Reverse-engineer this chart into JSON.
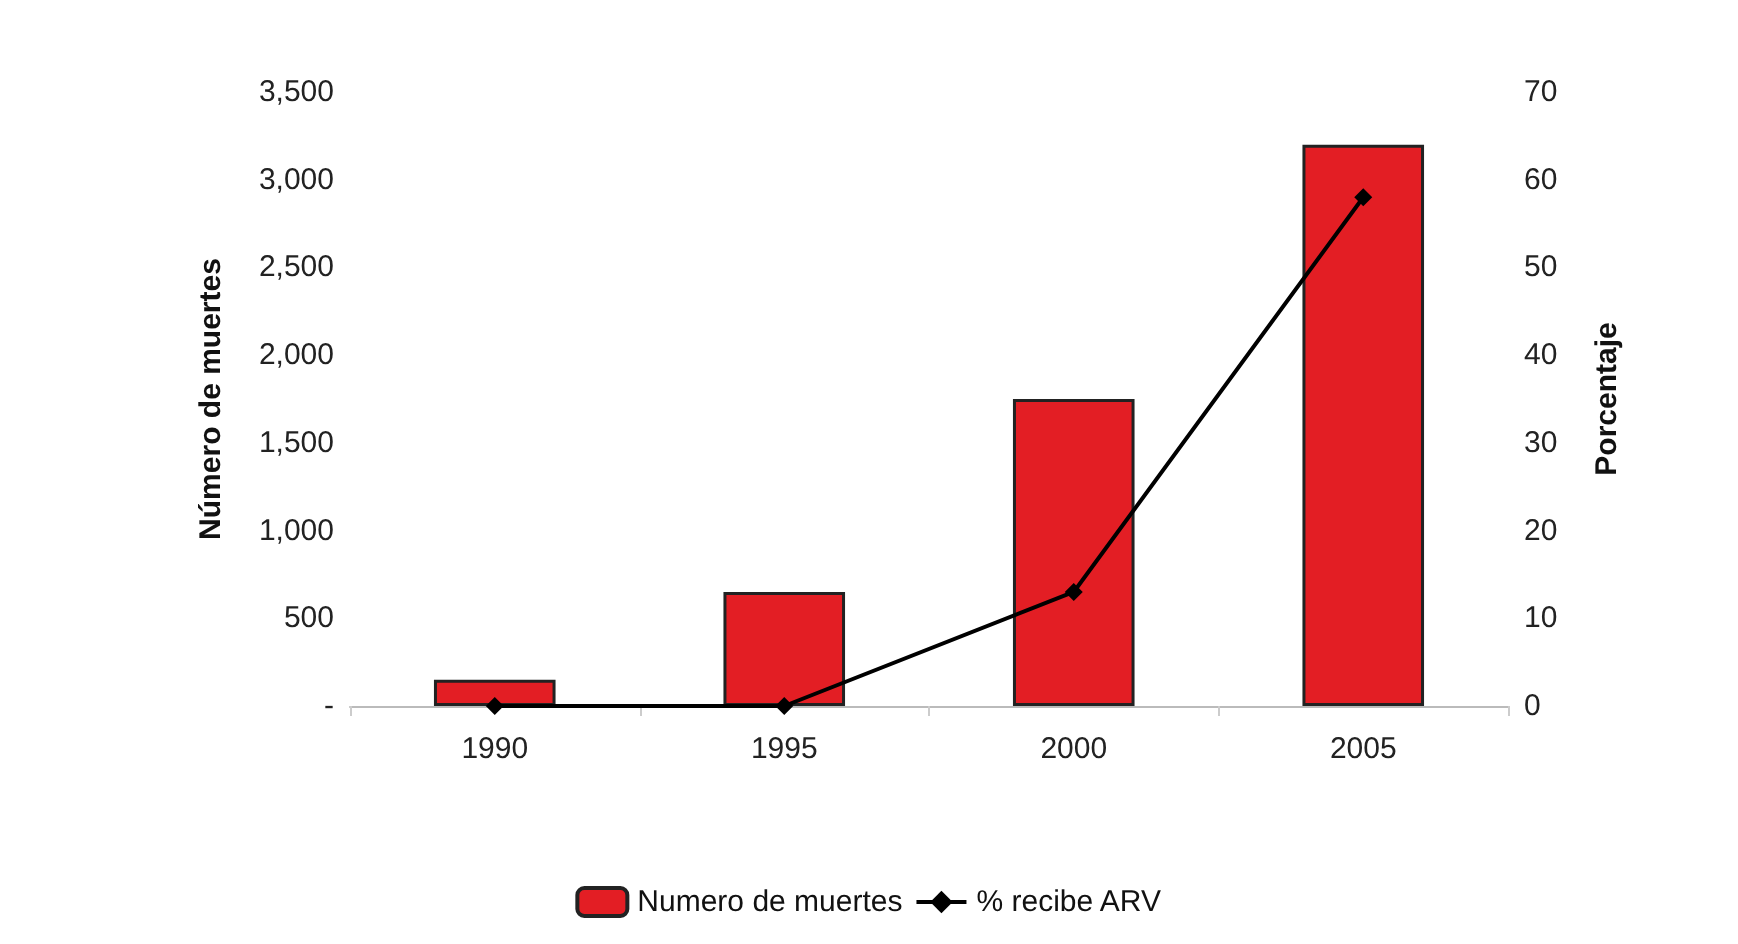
{
  "chart_data": {
    "type": "bar",
    "ylabel": "Número de muertes",
    "y2label": "Porcentaje",
    "categories": [
      "1990",
      "1995",
      "2000",
      "2005"
    ],
    "series": [
      {
        "name": "Numero de muertes",
        "color": "#e31e24",
        "values": [
          150,
          650,
          1750,
          3200
        ]
      },
      {
        "name": "% recibe ARV",
        "type": "line",
        "axis": "y2",
        "color": "#000000",
        "values": [
          0,
          0,
          13,
          58
        ],
        "marker": "diamond"
      }
    ],
    "ylim": [
      0,
      3500
    ],
    "yticks": [
      {
        "value": 0,
        "label": "-"
      },
      {
        "value": 500,
        "label": "500"
      },
      {
        "value": 1000,
        "label": "1,000"
      },
      {
        "value": 1500,
        "label": "1,500"
      },
      {
        "value": 2000,
        "label": "2,000"
      },
      {
        "value": 2500,
        "label": "2,500"
      },
      {
        "value": 3000,
        "label": "3,000"
      },
      {
        "value": 3500,
        "label": "3,500"
      }
    ],
    "y2lim": [
      0,
      70
    ],
    "y2ticks": [
      0,
      10,
      20,
      30,
      40,
      50,
      60,
      70
    ],
    "grid": false,
    "legend": "bottom"
  }
}
